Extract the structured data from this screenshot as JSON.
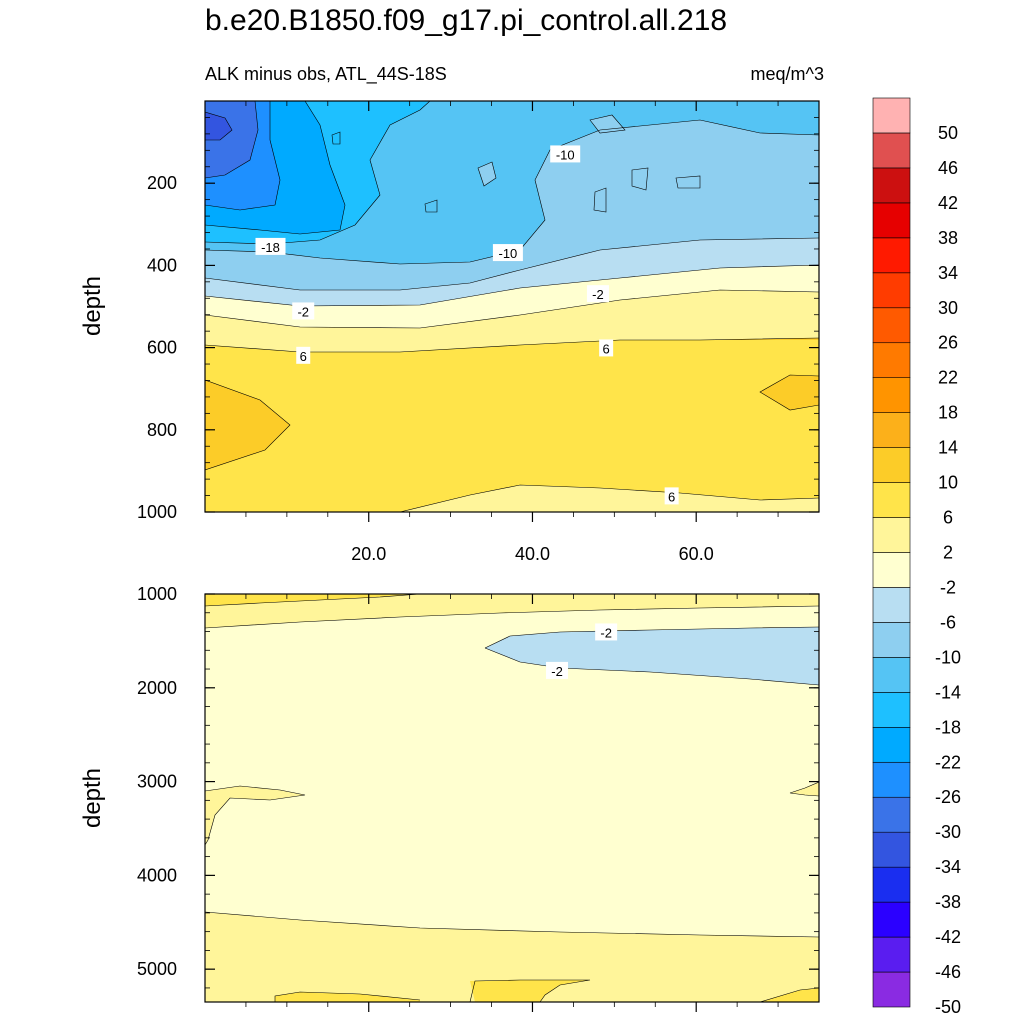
{
  "title": "b.e20.B1850.f09_g17.pi_control.all.218",
  "subtitle": "ALK minus obs, ATL_44S-18S",
  "units": "meq/m^3",
  "colors": {
    "bins": [
      "#8a2be2",
      "#5a1df0",
      "#2b00ff",
      "#1a2ef0",
      "#3355e0",
      "#3a73e8",
      "#1e90ff",
      "#00aaff",
      "#1ec0ff",
      "#55c4f4",
      "#8ecff0",
      "#b8def2",
      "#ffffd0",
      "#fff59a",
      "#ffe44a",
      "#fccc28",
      "#fcb01a",
      "#ff9400",
      "#ff7a00",
      "#ff5a00",
      "#ff3c00",
      "#ff1a00",
      "#e60000",
      "#cc1010",
      "#e05050",
      "#ffb2b2"
    ]
  },
  "chart_data": [
    {
      "type": "contour",
      "panel": "upper",
      "ylabel": "depth",
      "xlabel": "",
      "xlim": [
        0,
        75
      ],
      "ylim": [
        1000,
        0
      ],
      "x_ticks": [
        "20.0",
        "40.0",
        "60.0"
      ],
      "y_ticks": [
        "200",
        "400",
        "600",
        "800",
        "1000"
      ],
      "contour_labels": [
        {
          "text": "-10",
          "x": 44,
          "y": 130
        },
        {
          "text": "-18",
          "x": 8,
          "y": 355
        },
        {
          "text": "-10",
          "x": 37,
          "y": 370
        },
        {
          "text": "-2",
          "x": 12,
          "y": 512
        },
        {
          "text": "-2",
          "x": 48,
          "y": 470
        },
        {
          "text": "6",
          "x": 12,
          "y": 620
        },
        {
          "text": "6",
          "x": 49,
          "y": 602
        },
        {
          "text": "6",
          "x": 57,
          "y": 962
        }
      ]
    },
    {
      "type": "contour",
      "panel": "lower",
      "ylabel": "depth",
      "xlabel": "",
      "xlim": [
        0,
        75
      ],
      "ylim": [
        5350,
        1000
      ],
      "y_ticks": [
        "1000",
        "2000",
        "3000",
        "4000",
        "5000"
      ],
      "contour_labels": [
        {
          "text": "-2",
          "x": 49,
          "y": 1410
        },
        {
          "text": "-2",
          "x": 43,
          "y": 1820
        }
      ]
    }
  ],
  "colorbar": {
    "labels": [
      "50",
      "46",
      "42",
      "38",
      "34",
      "30",
      "26",
      "22",
      "18",
      "14",
      "10",
      "6",
      "2",
      "-2",
      "-6",
      "-10",
      "-14",
      "-18",
      "-22",
      "-26",
      "-30",
      "-34",
      "-38",
      "-42",
      "-46",
      "-50"
    ]
  }
}
